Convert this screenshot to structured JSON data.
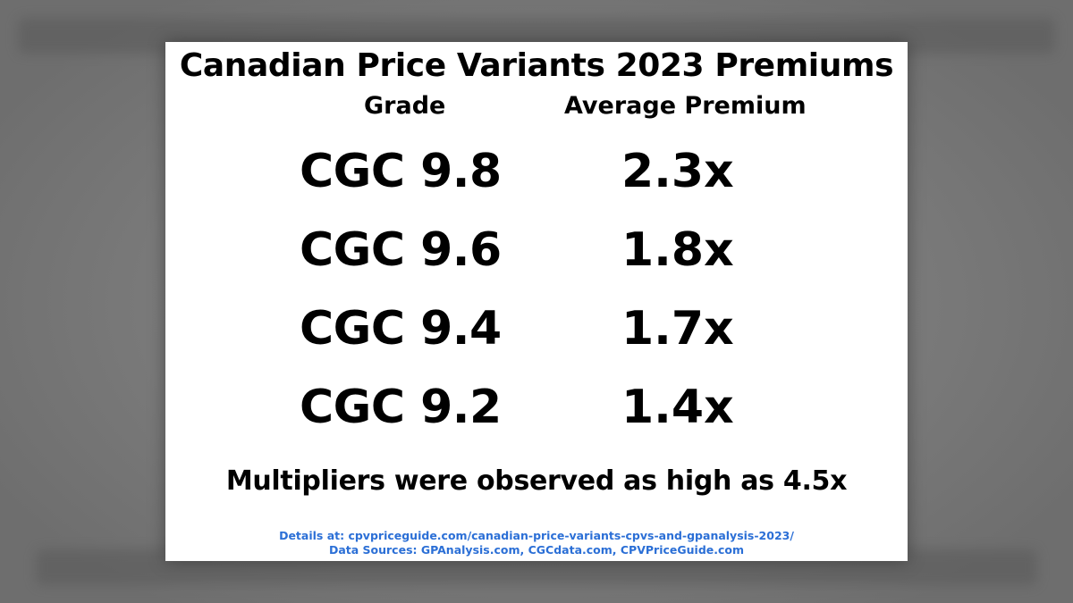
{
  "card": {
    "title": "Canadian Price Variants 2023 Premiums",
    "headers": {
      "grade": "Grade",
      "premium": "Average Premium"
    },
    "rows": [
      {
        "grade": "CGC 9.8",
        "premium": "2.3x"
      },
      {
        "grade": "CGC 9.6",
        "premium": "1.8x"
      },
      {
        "grade": "CGC 9.4",
        "premium": "1.7x"
      },
      {
        "grade": "CGC 9.2",
        "premium": "1.4x"
      }
    ],
    "note": "Multipliers were observed as high as 4.5x",
    "details_line": "Details at: cpvpriceguide.com/canadian-price-variants-cpvs-and-gpanalysis-2023/",
    "sources_line": "Data Sources: GPAnalysis.com, CGCdata.com, CPVPriceGuide.com"
  },
  "colors": {
    "background": "#7d7d7d",
    "card": "#ffffff",
    "text": "#000000",
    "link": "#2b6fd6"
  }
}
